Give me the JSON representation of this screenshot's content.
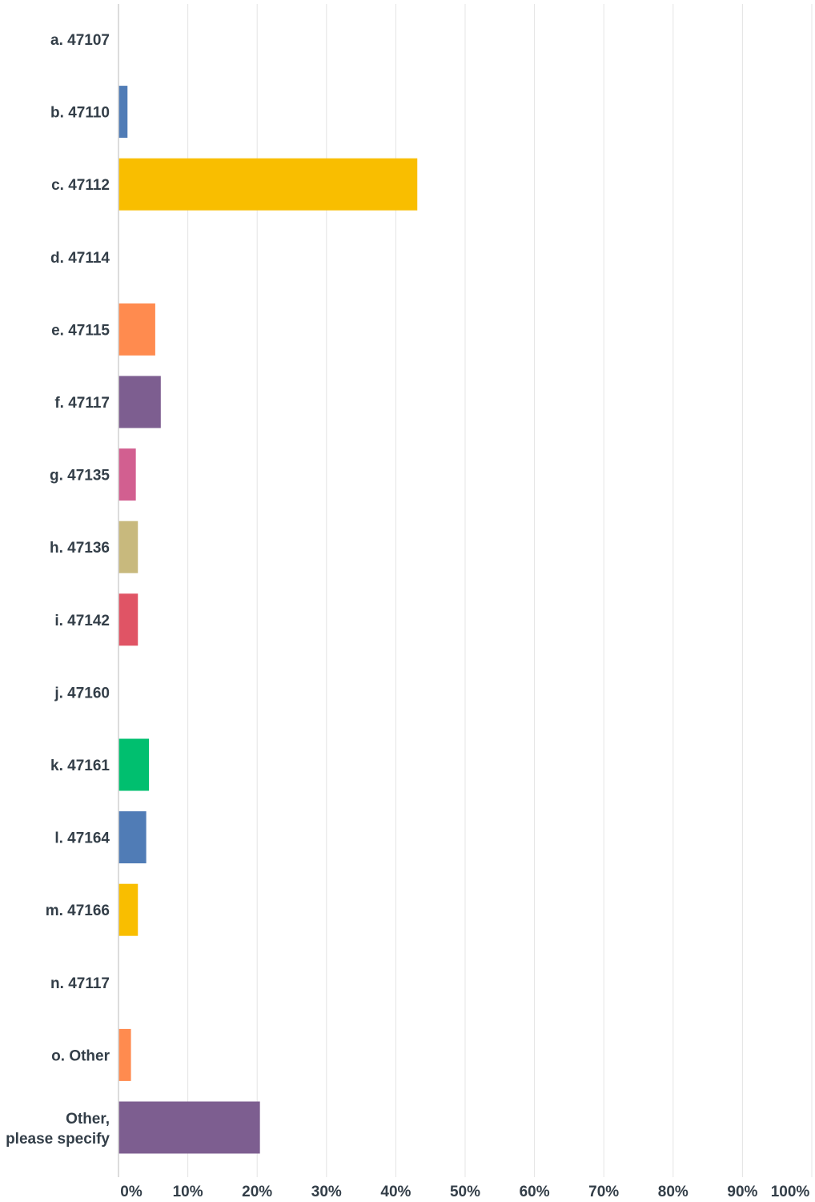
{
  "chart_data": {
    "type": "bar",
    "orientation": "horizontal",
    "categories": [
      "a. 47107",
      "b. 47110",
      "c. 47112",
      "d. 47114",
      "e. 47115",
      "f. 47117",
      "g. 47135",
      "h. 47136",
      "i. 47142",
      "j. 47160",
      "k. 47161",
      "l. 47164",
      "m. 47166",
      "n. 47117",
      "o. Other",
      "Other, please specify"
    ],
    "values": [
      0,
      1.3,
      43.1,
      0,
      5.3,
      6.1,
      2.5,
      2.8,
      2.8,
      0,
      4.4,
      4.0,
      2.8,
      0,
      1.8,
      20.4
    ],
    "colors": [
      "#507cb6",
      "#507cb6",
      "#f9be00",
      "#6bc8cd",
      "#ff8b4f",
      "#7d5e90",
      "#d25f90",
      "#c8b97d",
      "#e05465",
      "#a3d89f",
      "#00bf6f",
      "#507cb6",
      "#f9be00",
      "#6bc8cd",
      "#ff8b4f",
      "#7d5e90"
    ],
    "xticks": [
      "0%",
      "10%",
      "20%",
      "30%",
      "40%",
      "50%",
      "60%",
      "70%",
      "80%",
      "90%",
      "100%"
    ],
    "xlim": [
      0,
      100
    ],
    "grid": true,
    "title": "",
    "xlabel": "",
    "ylabel": ""
  }
}
